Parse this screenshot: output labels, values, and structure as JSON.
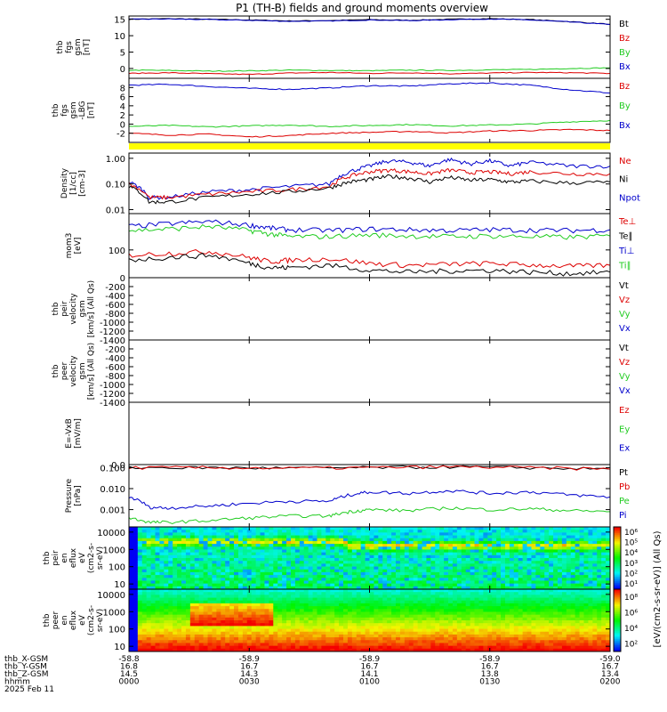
{
  "title": "P1 (TH-B) fields and ground moments overview",
  "colors": {
    "black": "#000000",
    "red": "#dd0000",
    "green": "#22cc22",
    "blue": "#0000cc",
    "yellow": "#ffff00"
  },
  "chart_data": [
    {
      "id": "p1",
      "type": "line",
      "ylabel": [
        "thb",
        "fgs",
        "gsm",
        "[nT]"
      ],
      "yticks": [
        0,
        5,
        10,
        15
      ],
      "ytick_labels": [
        "0",
        "5",
        "10",
        "15"
      ],
      "ylim": [
        -3,
        16
      ],
      "log": false,
      "legend": [
        {
          "name": "Bt",
          "color": "#000000"
        },
        {
          "name": "Bz",
          "color": "#dd0000"
        },
        {
          "name": "By",
          "color": "#22cc22"
        },
        {
          "name": "Bx",
          "color": "#0000cc"
        }
      ],
      "series": [
        {
          "color": "#000000",
          "x": [
            0,
            10,
            20,
            30,
            40,
            50,
            60,
            70,
            80,
            90,
            100,
            110,
            120
          ],
          "y": [
            15,
            15.2,
            15,
            14.8,
            14.5,
            14.6,
            14.9,
            14.7,
            15,
            15.2,
            14.9,
            14.3,
            13.5
          ]
        },
        {
          "color": "#0000cc",
          "x": [
            0,
            10,
            20,
            30,
            40,
            50,
            60,
            70,
            80,
            90,
            100,
            110,
            120
          ],
          "y": [
            15,
            15.1,
            14.9,
            14.7,
            14.4,
            14.5,
            14.8,
            14.6,
            14.9,
            15.1,
            14.8,
            14.2,
            13.4
          ]
        },
        {
          "color": "#22cc22",
          "x": [
            0,
            10,
            20,
            30,
            40,
            50,
            60,
            70,
            80,
            90,
            100,
            110,
            120
          ],
          "y": [
            -0.5,
            -0.6,
            -0.8,
            -0.7,
            -0.5,
            -0.6,
            -0.7,
            -0.5,
            -0.6,
            -0.4,
            -0.3,
            0,
            0.2
          ]
        },
        {
          "color": "#dd0000",
          "x": [
            0,
            10,
            20,
            30,
            40,
            50,
            60,
            70,
            80,
            90,
            100,
            110,
            120
          ],
          "y": [
            -1.5,
            -1.3,
            -1.6,
            -1.8,
            -1.4,
            -1.2,
            -1.5,
            -1.3,
            -1.6,
            -1.4,
            -1.2,
            -1.3,
            -1.5
          ]
        }
      ]
    },
    {
      "id": "p2",
      "type": "line",
      "ylabel": [
        "thb",
        "fgs",
        "gsm",
        "-LBG",
        "[nT]"
      ],
      "yticks": [
        -2,
        0,
        2,
        4,
        6,
        8
      ],
      "ytick_labels": [
        "-2",
        "0",
        "2",
        "4",
        "6",
        "8"
      ],
      "ylim": [
        -4,
        10
      ],
      "log": false,
      "legend": [
        {
          "name": "Bz",
          "color": "#dd0000"
        },
        {
          "name": "By",
          "color": "#22cc22"
        },
        {
          "name": "Bx",
          "color": "#0000cc"
        }
      ],
      "series": [
        {
          "color": "#0000cc",
          "x": [
            0,
            10,
            20,
            30,
            40,
            50,
            60,
            70,
            80,
            90,
            100,
            110,
            120
          ],
          "y": [
            8.5,
            8.7,
            8.2,
            7.8,
            7.6,
            7.9,
            8.4,
            8.3,
            8.8,
            9,
            8.5,
            7.5,
            6.8
          ]
        },
        {
          "color": "#22cc22",
          "x": [
            0,
            10,
            20,
            30,
            40,
            50,
            60,
            70,
            80,
            90,
            100,
            110,
            120
          ],
          "y": [
            -0.5,
            -0.3,
            -0.6,
            -0.4,
            -0.2,
            -0.5,
            -0.3,
            -0.1,
            -0.4,
            -0.2,
            0,
            0.5,
            0.8
          ]
        },
        {
          "color": "#dd0000",
          "x": [
            0,
            10,
            20,
            30,
            40,
            50,
            60,
            70,
            80,
            90,
            100,
            110,
            120
          ],
          "y": [
            -2,
            -2.4,
            -2.2,
            -2.8,
            -2.5,
            -2,
            -1.8,
            -1.6,
            -1.9,
            -1.5,
            -1.4,
            -1.2,
            -1.4
          ]
        }
      ]
    },
    {
      "id": "p3",
      "type": "line",
      "ylabel": [
        "Density",
        "[1/cc]",
        "[cm-3]"
      ],
      "yticks": [
        0.01,
        0.1,
        1
      ],
      "ytick_labels": [
        "0.01",
        "0.10",
        "1.00"
      ],
      "ylim": [
        0.007,
        1.6
      ],
      "log": true,
      "legend": [
        {
          "name": "Ne",
          "color": "#dd0000"
        },
        {
          "name": "Ni",
          "color": "#000000"
        },
        {
          "name": "Npot",
          "color": "#0000cc"
        }
      ],
      "series": [
        {
          "color": "#0000cc",
          "x": [
            0,
            5,
            10,
            20,
            30,
            40,
            50,
            55,
            60,
            65,
            70,
            75,
            80,
            85,
            90,
            95,
            100,
            110,
            120
          ],
          "y": [
            0.12,
            0.03,
            0.03,
            0.05,
            0.06,
            0.08,
            0.1,
            0.3,
            0.5,
            0.8,
            0.7,
            0.5,
            0.9,
            0.6,
            0.8,
            0.5,
            0.7,
            0.5,
            0.5
          ]
        },
        {
          "color": "#dd0000",
          "x": [
            0,
            5,
            10,
            20,
            30,
            40,
            50,
            55,
            60,
            65,
            70,
            75,
            80,
            85,
            90,
            95,
            100,
            110,
            120
          ],
          "y": [
            0.1,
            0.03,
            0.03,
            0.04,
            0.05,
            0.06,
            0.08,
            0.2,
            0.3,
            0.35,
            0.3,
            0.25,
            0.35,
            0.28,
            0.3,
            0.25,
            0.3,
            0.25,
            0.25
          ]
        },
        {
          "color": "#000000",
          "x": [
            0,
            5,
            10,
            20,
            30,
            40,
            50,
            55,
            60,
            65,
            70,
            75,
            80,
            85,
            90,
            95,
            100,
            110,
            120
          ],
          "y": [
            0.08,
            0.02,
            0.02,
            0.03,
            0.04,
            0.05,
            0.07,
            0.12,
            0.15,
            0.2,
            0.17,
            0.12,
            0.18,
            0.14,
            0.15,
            0.12,
            0.13,
            0.11,
            0.12
          ]
        }
      ]
    },
    {
      "id": "p4",
      "type": "line",
      "ylabel": [
        "mom3",
        "[eV]"
      ],
      "yticks": [
        100
      ],
      "ytick_labels": [
        "100"
      ],
      "ylim": [
        15,
        1200
      ],
      "log": true,
      "legend": [
        {
          "name": "Te⊥",
          "color": "#dd0000"
        },
        {
          "name": "Te∥",
          "color": "#000000"
        },
        {
          "name": "Ti⊥",
          "color": "#0000cc"
        },
        {
          "name": "Ti∥",
          "color": "#22cc22"
        }
      ],
      "series": [
        {
          "color": "#0000cc",
          "x": [
            0,
            10,
            20,
            30,
            35,
            40,
            50,
            60,
            70,
            80,
            90,
            100,
            110,
            120
          ],
          "y": [
            500,
            600,
            700,
            550,
            450,
            400,
            380,
            420,
            400,
            380,
            400,
            390,
            380,
            400
          ]
        },
        {
          "color": "#22cc22",
          "x": [
            0,
            10,
            20,
            30,
            35,
            40,
            50,
            60,
            70,
            80,
            90,
            100,
            110,
            120
          ],
          "y": [
            380,
            420,
            500,
            380,
            300,
            250,
            250,
            280,
            260,
            250,
            260,
            250,
            240,
            260
          ]
        },
        {
          "color": "#dd0000",
          "x": [
            0,
            10,
            20,
            30,
            35,
            40,
            50,
            60,
            70,
            80,
            90,
            100,
            110,
            120
          ],
          "y": [
            70,
            80,
            90,
            60,
            45,
            50,
            55,
            40,
            35,
            38,
            40,
            36,
            33,
            35
          ]
        },
        {
          "color": "#000000",
          "x": [
            0,
            10,
            20,
            30,
            35,
            40,
            50,
            60,
            70,
            80,
            90,
            100,
            110,
            120
          ],
          "y": [
            50,
            60,
            70,
            40,
            30,
            30,
            35,
            25,
            22,
            24,
            25,
            22,
            20,
            22
          ]
        }
      ]
    },
    {
      "id": "p5",
      "type": "line",
      "ylabel": [
        "thb",
        "peir",
        "velocity",
        "gsm",
        "[km/s] (All Qs)"
      ],
      "yticks": [
        -1400,
        -1200,
        -1000,
        -800,
        -600,
        -400,
        -200,
        0
      ],
      "ytick_labels": [
        "-1400",
        "-1200",
        "-1000",
        "-800",
        "-600",
        "-400",
        "-200",
        "0"
      ],
      "ylim": [
        -1400,
        0
      ],
      "log": false,
      "legend": [
        {
          "name": "Vt",
          "color": "#000000"
        },
        {
          "name": "Vz",
          "color": "#dd0000"
        },
        {
          "name": "Vy",
          "color": "#22cc22"
        },
        {
          "name": "Vx",
          "color": "#0000cc"
        }
      ],
      "series": []
    },
    {
      "id": "p6",
      "type": "line",
      "ylabel": [
        "thb",
        "peer",
        "velocity",
        "gsm",
        "[km/s] (All Qs)"
      ],
      "yticks": [
        -1400,
        -1200,
        -1000,
        -800,
        -600,
        -400,
        -200
      ],
      "ytick_labels": [
        "-1400",
        "-1200",
        "-1000",
        "-800",
        "-600",
        "-400",
        "-200"
      ],
      "ylim": [
        -1400,
        0
      ],
      "log": false,
      "legend": [
        {
          "name": "Vt",
          "color": "#000000"
        },
        {
          "name": "Vz",
          "color": "#dd0000"
        },
        {
          "name": "Vy",
          "color": "#22cc22"
        },
        {
          "name": "Vx",
          "color": "#0000cc"
        }
      ],
      "series": []
    },
    {
      "id": "p7",
      "type": "line",
      "ylabel": [
        "E=-VxB",
        "[mV/m]"
      ],
      "yticks": [
        0
      ],
      "ytick_labels": [
        "0.0"
      ],
      "ylim": [
        0,
        1
      ],
      "log": false,
      "legend": [
        {
          "name": "Ez",
          "color": "#dd0000"
        },
        {
          "name": "Ey",
          "color": "#22cc22"
        },
        {
          "name": "Ex",
          "color": "#0000cc"
        }
      ],
      "series": []
    },
    {
      "id": "p8",
      "type": "line",
      "ylabel": [
        "Pressure",
        "[nPa]"
      ],
      "yticks": [
        0.001,
        0.01,
        0.1
      ],
      "ytick_labels": [
        "0.001",
        "0.010",
        "0.100"
      ],
      "ylim": [
        0.00015,
        0.14
      ],
      "log": true,
      "legend": [
        {
          "name": "Pt",
          "color": "#000000"
        },
        {
          "name": "Pb",
          "color": "#dd0000"
        },
        {
          "name": "Pe",
          "color": "#22cc22"
        },
        {
          "name": "Pi",
          "color": "#0000cc"
        }
      ],
      "series": [
        {
          "color": "#000000",
          "x": [
            0,
            20,
            40,
            60,
            80,
            100,
            120
          ],
          "y": [
            0.1,
            0.1,
            0.095,
            0.1,
            0.11,
            0.1,
            0.085
          ]
        },
        {
          "color": "#dd0000",
          "x": [
            0,
            20,
            40,
            60,
            80,
            100,
            120
          ],
          "y": [
            0.1,
            0.1,
            0.095,
            0.1,
            0.11,
            0.1,
            0.085
          ]
        },
        {
          "color": "#0000cc",
          "x": [
            0,
            5,
            10,
            20,
            30,
            40,
            50,
            55,
            60,
            70,
            80,
            90,
            100,
            110,
            120
          ],
          "y": [
            0.004,
            0.0013,
            0.0012,
            0.0015,
            0.002,
            0.0025,
            0.0025,
            0.005,
            0.007,
            0.006,
            0.008,
            0.006,
            0.007,
            0.005,
            0.004
          ]
        },
        {
          "color": "#22cc22",
          "x": [
            0,
            5,
            10,
            20,
            30,
            40,
            50,
            55,
            60,
            70,
            80,
            90,
            100,
            110,
            120
          ],
          "y": [
            0.0004,
            0.00025,
            0.00025,
            0.0003,
            0.0004,
            0.0005,
            0.0005,
            0.0008,
            0.001,
            0.0009,
            0.0012,
            0.001,
            0.0011,
            0.0009,
            0.0008
          ]
        }
      ]
    },
    {
      "id": "p9",
      "type": "heatmap",
      "ylabel": [
        "thb",
        "peir",
        "en",
        "eflux",
        "eV",
        "(cm2-s-",
        "sr-eV)"
      ],
      "yticks": [
        10,
        100,
        1000,
        10000
      ],
      "ytick_labels": [
        "10",
        "100",
        "1000",
        "10000"
      ],
      "ylim": [
        5,
        20000
      ],
      "log": true,
      "colorbar_ticks": [
        "10¹",
        "10²",
        "10³",
        "10⁴",
        "10⁵",
        "10⁶"
      ]
    },
    {
      "id": "p10",
      "type": "heatmap",
      "ylabel": [
        "thb",
        "peer",
        "en",
        "eflux",
        "eV",
        "(cm2-s-",
        "sr-eV)"
      ],
      "yticks": [
        10,
        100,
        1000,
        10000
      ],
      "ytick_labels": [
        "10",
        "100",
        "1000",
        "10000"
      ],
      "ylim": [
        5,
        20000
      ],
      "log": true,
      "colorbar_ticks": [
        "10²",
        "10⁴",
        "10⁶",
        "10⁸"
      ]
    }
  ],
  "colorbar_label": "[eV/(cm2-s-sr-eV)] (All Qs)",
  "xaxis": {
    "row_labels": [
      "thb_X-GSM",
      "thb_Y-GSM",
      "thb_Z-GSM",
      "hhmm",
      "2025 Feb 11"
    ],
    "columns": [
      {
        "values": [
          "-58.8",
          "16.8",
          "14.5",
          "0000"
        ]
      },
      {
        "values": [
          "-58.9",
          "16.7",
          "14.3",
          "0030"
        ]
      },
      {
        "values": [
          "-58.9",
          "16.7",
          "14.1",
          "0100"
        ]
      },
      {
        "values": [
          "-58.9",
          "16.7",
          "13.8",
          "0130"
        ]
      },
      {
        "values": [
          "-59.0",
          "16.7",
          "13.4",
          "0200"
        ]
      }
    ]
  }
}
